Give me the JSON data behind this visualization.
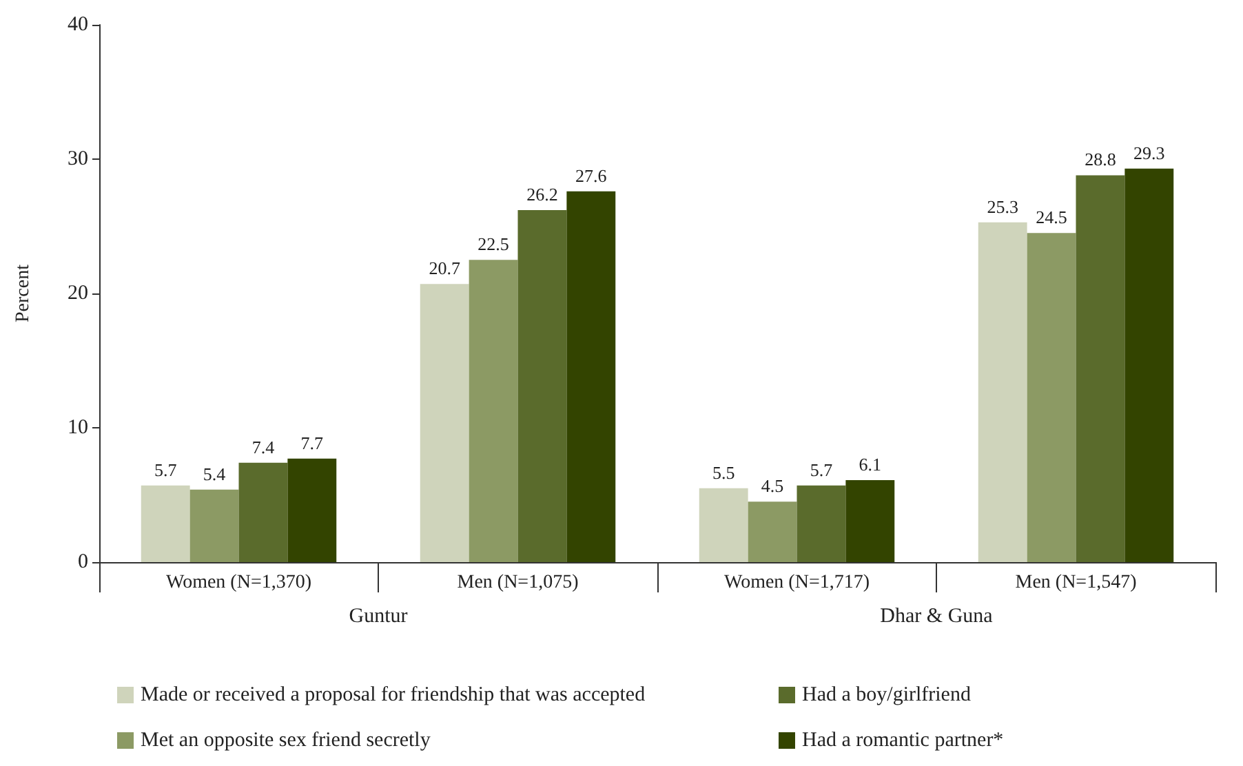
{
  "chart_data": {
    "type": "bar",
    "ylabel": "Percent",
    "categories": [
      "Women (N=1,370)",
      "Men (N=1,075)",
      "Women (N=1,717)",
      "Men (N=1,547)"
    ],
    "series": [
      {
        "name": "Made or received a proposal for friendship that was accepted",
        "color": "#cfd4bb",
        "values": [
          5.7,
          20.7,
          5.5,
          25.3
        ]
      },
      {
        "name": "Met an opposite sex friend secretly",
        "color": "#8c9a64",
        "values": [
          5.4,
          22.5,
          4.5,
          24.5
        ]
      },
      {
        "name": "Had a boy/girlfriend",
        "color": "#5a6b2c",
        "values": [
          7.4,
          26.2,
          5.7,
          28.8
        ]
      },
      {
        "name": "Had a romantic partner*",
        "color": "#334400",
        "values": [
          7.7,
          27.6,
          6.1,
          29.3
        ]
      }
    ],
    "annotations": [
      "Guntur",
      "Dhar & Guna"
    ],
    "ylim": [
      0,
      40
    ],
    "yticks": [
      0,
      10,
      20,
      30,
      40
    ],
    "grid": false,
    "legend": "bottom",
    "data_labels": true
  }
}
